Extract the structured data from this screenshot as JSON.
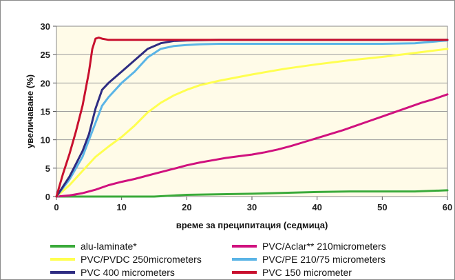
{
  "chart_data": {
    "type": "line",
    "title": "",
    "xlabel": "време за преципитация (седмица)",
    "ylabel": "увеличаване (%)",
    "xlim": [
      0,
      60
    ],
    "ylim": [
      0,
      30
    ],
    "xticks": [
      "0",
      "10",
      "20",
      "30",
      "40",
      "50",
      "60"
    ],
    "yticks": [
      "0",
      "5",
      "10",
      "15",
      "20",
      "25",
      "30"
    ],
    "grid": "horizontal",
    "legend_position": "bottom",
    "plot_background": "#fffbe8",
    "series": [
      {
        "name": "alu-laminate*",
        "color": "#3aaa3a",
        "x": [
          0,
          15,
          20,
          30,
          40,
          45,
          55,
          60
        ],
        "y": [
          0,
          0,
          0.3,
          0.5,
          0.8,
          0.9,
          0.9,
          1.1
        ]
      },
      {
        "name": "PVC/Aclar** 210micrometers",
        "color": "#d0117e",
        "x": [
          0,
          2,
          4,
          6,
          8,
          10,
          12,
          14,
          16,
          18,
          20,
          22,
          24,
          26,
          28,
          30,
          32,
          34,
          36,
          38,
          40,
          42,
          44,
          46,
          48,
          50,
          52,
          54,
          56,
          58,
          60
        ],
        "y": [
          0,
          0.2,
          0.6,
          1.2,
          2.0,
          2.6,
          3.1,
          3.7,
          4.3,
          4.9,
          5.5,
          6.0,
          6.4,
          6.8,
          7.1,
          7.4,
          7.8,
          8.3,
          8.9,
          9.6,
          10.3,
          11.0,
          11.7,
          12.5,
          13.3,
          14.1,
          14.9,
          15.7,
          16.5,
          17.2,
          18.0
        ]
      },
      {
        "name": "PVC/PVDC 250micrometers",
        "color": "#ffff50",
        "x": [
          0,
          2,
          4,
          6,
          8,
          10,
          12,
          14,
          16,
          18,
          20,
          22,
          25,
          30,
          35,
          40,
          45,
          50,
          55,
          60
        ],
        "y": [
          0,
          2.0,
          4.5,
          7.0,
          8.8,
          10.5,
          12.5,
          14.8,
          16.5,
          17.8,
          18.8,
          19.6,
          20.4,
          21.5,
          22.5,
          23.3,
          24.0,
          24.6,
          25.3,
          26.0
        ]
      },
      {
        "name": "PVC/PE 210/75 micrometers",
        "color": "#5ab4e6",
        "x": [
          0,
          2,
          4,
          6,
          7,
          8,
          10,
          12,
          14,
          16,
          18,
          20,
          22,
          25,
          30,
          40,
          50,
          55,
          60
        ],
        "y": [
          0,
          3.0,
          7.0,
          13.0,
          16.0,
          17.5,
          20.0,
          22.0,
          24.5,
          26.0,
          26.5,
          26.7,
          26.8,
          26.9,
          26.9,
          26.9,
          26.9,
          27.0,
          27.5
        ]
      },
      {
        "name": "PVC 400 micrometers",
        "color": "#2e2c82",
        "x": [
          0,
          2,
          4,
          5,
          6,
          7,
          8,
          10,
          12,
          14,
          16,
          18,
          20,
          25,
          30,
          40,
          50,
          60
        ],
        "y": [
          0,
          3.5,
          8.0,
          11.0,
          15.5,
          18.8,
          20.0,
          22.0,
          24.0,
          26.0,
          27.0,
          27.4,
          27.5,
          27.6,
          27.6,
          27.6,
          27.6,
          27.6
        ]
      },
      {
        "name": "PVC 150 micrometer",
        "color": "#c8102e",
        "x": [
          0,
          1,
          2,
          3,
          4,
          5,
          5.5,
          6,
          6.5,
          7,
          8,
          10,
          20,
          30,
          40,
          50,
          60
        ],
        "y": [
          0,
          4.0,
          7.5,
          11.5,
          16.0,
          22.0,
          26.0,
          27.8,
          28.0,
          27.8,
          27.6,
          27.6,
          27.6,
          27.6,
          27.6,
          27.6,
          27.6
        ]
      }
    ]
  }
}
